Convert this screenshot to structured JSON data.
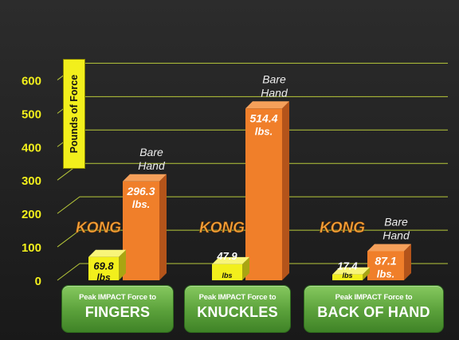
{
  "chart_data": {
    "type": "bar",
    "ylabel": "Pounds of Force",
    "ylim": [
      0,
      600
    ],
    "yticks": [
      0,
      100,
      200,
      300,
      400,
      500,
      600
    ],
    "categories": [
      {
        "sub": "Peak IMPACT Force to",
        "main": "FINGERS"
      },
      {
        "sub": "Peak IMPACT Force to",
        "main": "KNUCKLES"
      },
      {
        "sub": "Peak IMPACT Force to",
        "main": "BACK OF HAND"
      }
    ],
    "series": [
      {
        "name": "KONG",
        "values": [
          69.8,
          47.9,
          17.4
        ],
        "value_labels": [
          "69.8",
          "47.9",
          "17.4"
        ],
        "unit_labels": [
          "lbs",
          "lbs",
          "lbs"
        ]
      },
      {
        "name": "Bare Hand",
        "values": [
          296.3,
          514.4,
          87.1
        ],
        "value_labels": [
          "296.3",
          "514.4",
          "87.1"
        ],
        "unit_labels": [
          "lbs.",
          "lbs.",
          "lbs."
        ]
      }
    ],
    "legend": "labels above bars",
    "grid": true
  },
  "colors": {
    "background": "#1e1e1e",
    "grid": "#b8c93a",
    "tick_text": "#f2ef1c",
    "kong_bar": "#f2ef1c",
    "bare_bar": "#f07f2a",
    "kong_text": "#f6a23a",
    "category_pill": "#5aa03a"
  }
}
